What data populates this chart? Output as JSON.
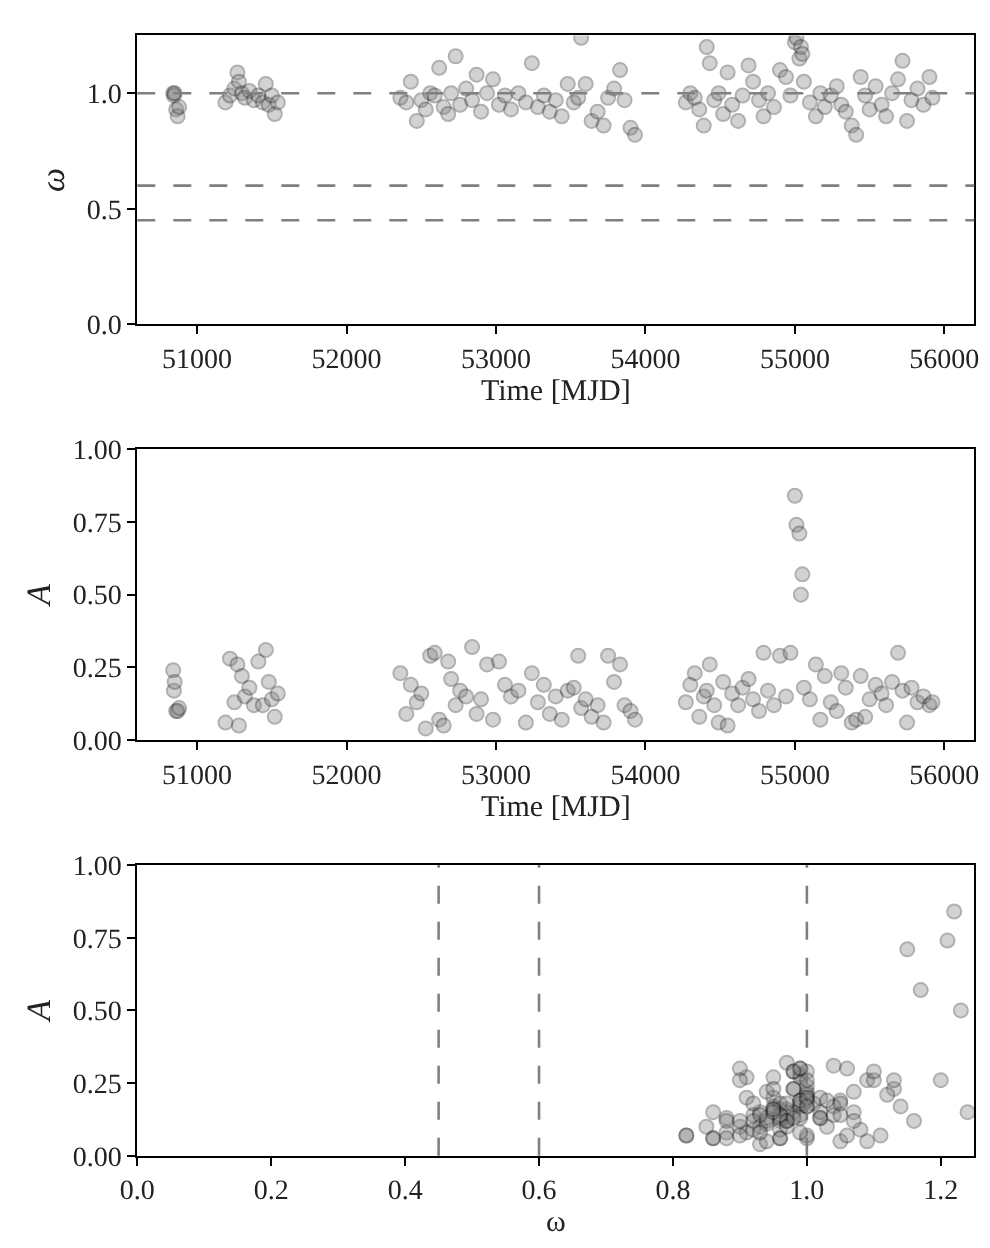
{
  "chart_data": [
    {
      "type": "scatter",
      "xlabel": "Time [MJD]",
      "ylabel": "ω",
      "marker": "circle",
      "xlim": [
        50600,
        56200
      ],
      "xticks": [
        51000,
        52000,
        53000,
        54000,
        55000,
        56000
      ],
      "ylim": [
        0,
        1.25
      ],
      "yticks": [
        {
          "value": 0,
          "label": "0.0"
        },
        {
          "value": 0.5,
          "label": "0.5"
        },
        {
          "value": 1,
          "label": "1.0"
        }
      ],
      "ref_lines": [
        {
          "axis": "y",
          "value": 1.0,
          "color": "#808080",
          "line_style": "dashed"
        },
        {
          "axis": "y",
          "value": 0.6,
          "color": "#808080",
          "line_style": "dashed"
        },
        {
          "axis": "y",
          "value": 0.45,
          "color": "#808080",
          "line_style": "dashed"
        }
      ],
      "x": [
        50840,
        50845,
        50850,
        50860,
        50870,
        50880,
        51190,
        51220,
        51250,
        51270,
        51280,
        51300,
        51320,
        51350,
        51380,
        51410,
        51440,
        51460,
        51480,
        51500,
        51520,
        51540,
        52360,
        52400,
        52430,
        52470,
        52500,
        52530,
        52560,
        52590,
        52620,
        52650,
        52680,
        52700,
        52730,
        52760,
        52800,
        52840,
        52870,
        52900,
        52940,
        52980,
        53020,
        53060,
        53100,
        53150,
        53200,
        53240,
        53280,
        53320,
        53360,
        53400,
        53440,
        53480,
        53520,
        53550,
        53570,
        53600,
        53640,
        53680,
        53720,
        53750,
        53790,
        53830,
        53860,
        53900,
        53930,
        54270,
        54300,
        54330,
        54360,
        54390,
        54410,
        54430,
        54460,
        54490,
        54520,
        54550,
        54580,
        54620,
        54650,
        54690,
        54720,
        54760,
        54790,
        54820,
        54860,
        54900,
        54940,
        54970,
        55000,
        55010,
        55030,
        55040,
        55050,
        55060,
        55100,
        55140,
        55170,
        55200,
        55240,
        55280,
        55310,
        55340,
        55380,
        55410,
        55440,
        55470,
        55500,
        55540,
        55580,
        55610,
        55650,
        55690,
        55720,
        55750,
        55780,
        55820,
        55860,
        55900,
        55920
      ],
      "series": [
        {
          "color": "#808080",
          "values": [
            1.0,
            0.99,
            1.0,
            0.93,
            0.9,
            0.94,
            0.96,
            0.99,
            1.02,
            1.09,
            1.05,
            1.0,
            0.98,
            1.01,
            0.97,
            0.99,
            0.96,
            1.04,
            0.95,
            0.99,
            0.91,
            0.96,
            0.98,
            0.96,
            1.05,
            0.88,
            0.97,
            0.93,
            1.0,
            0.99,
            1.11,
            0.94,
            0.91,
            1.0,
            1.16,
            0.95,
            1.02,
            0.97,
            1.08,
            0.92,
            1.0,
            1.06,
            0.95,
            0.99,
            0.93,
            1.0,
            0.96,
            1.13,
            0.94,
            0.99,
            0.92,
            0.97,
            0.9,
            1.04,
            0.96,
            0.98,
            1.24,
            1.04,
            0.88,
            0.92,
            0.86,
            0.98,
            1.02,
            1.1,
            0.97,
            0.85,
            0.82,
            0.96,
            1.0,
            0.98,
            0.93,
            0.86,
            1.2,
            1.13,
            0.97,
            1.0,
            0.91,
            1.09,
            0.95,
            0.88,
            0.99,
            1.12,
            1.05,
            0.97,
            0.9,
            1.0,
            0.94,
            1.1,
            1.07,
            0.99,
            1.22,
            1.24,
            1.15,
            1.2,
            1.17,
            1.05,
            0.96,
            0.9,
            1.0,
            0.94,
            0.99,
            1.03,
            0.95,
            0.92,
            0.86,
            0.82,
            1.07,
            0.99,
            0.93,
            1.03,
            0.95,
            0.9,
            1.0,
            1.06,
            1.14,
            0.88,
            0.97,
            1.02,
            0.95,
            1.07,
            0.98
          ]
        }
      ]
    },
    {
      "type": "scatter",
      "xlabel": "Time [MJD]",
      "ylabel": "A",
      "marker": "circle",
      "xlim": [
        50600,
        56200
      ],
      "xticks": [
        51000,
        52000,
        53000,
        54000,
        55000,
        56000
      ],
      "ylim": [
        0,
        1
      ],
      "yticks": [
        {
          "value": 0,
          "label": "0.00"
        },
        {
          "value": 0.25,
          "label": "0.25"
        },
        {
          "value": 0.5,
          "label": "0.50"
        },
        {
          "value": 0.75,
          "label": "0.75"
        },
        {
          "value": 1,
          "label": "1.00"
        }
      ],
      "x": [
        50840,
        50845,
        50850,
        50860,
        50870,
        50880,
        51190,
        51220,
        51250,
        51270,
        51280,
        51300,
        51320,
        51350,
        51380,
        51410,
        51440,
        51460,
        51480,
        51500,
        51520,
        51540,
        52360,
        52400,
        52430,
        52470,
        52500,
        52530,
        52560,
        52590,
        52620,
        52650,
        52680,
        52700,
        52730,
        52760,
        52800,
        52840,
        52870,
        52900,
        52940,
        52980,
        53020,
        53060,
        53100,
        53150,
        53200,
        53240,
        53280,
        53320,
        53360,
        53400,
        53440,
        53480,
        53520,
        53550,
        53570,
        53600,
        53640,
        53680,
        53720,
        53750,
        53790,
        53830,
        53860,
        53900,
        53930,
        54270,
        54300,
        54330,
        54360,
        54390,
        54410,
        54430,
        54460,
        54490,
        54520,
        54550,
        54580,
        54620,
        54650,
        54690,
        54720,
        54760,
        54790,
        54820,
        54860,
        54900,
        54940,
        54970,
        55000,
        55010,
        55030,
        55040,
        55050,
        55060,
        55100,
        55140,
        55170,
        55200,
        55240,
        55280,
        55310,
        55340,
        55380,
        55410,
        55440,
        55470,
        55500,
        55540,
        55580,
        55610,
        55650,
        55690,
        55720,
        55750,
        55780,
        55820,
        55860,
        55900,
        55920
      ],
      "series": [
        {
          "color": "#808080",
          "values": [
            0.24,
            0.17,
            0.2,
            0.1,
            0.1,
            0.11,
            0.06,
            0.28,
            0.13,
            0.26,
            0.05,
            0.22,
            0.15,
            0.18,
            0.12,
            0.27,
            0.12,
            0.31,
            0.2,
            0.14,
            0.08,
            0.16,
            0.23,
            0.09,
            0.19,
            0.13,
            0.16,
            0.04,
            0.29,
            0.3,
            0.07,
            0.05,
            0.27,
            0.21,
            0.12,
            0.17,
            0.15,
            0.32,
            0.09,
            0.14,
            0.26,
            0.07,
            0.27,
            0.19,
            0.15,
            0.17,
            0.06,
            0.23,
            0.13,
            0.19,
            0.09,
            0.15,
            0.07,
            0.17,
            0.18,
            0.29,
            0.11,
            0.14,
            0.08,
            0.12,
            0.06,
            0.29,
            0.2,
            0.26,
            0.12,
            0.1,
            0.07,
            0.13,
            0.19,
            0.23,
            0.08,
            0.15,
            0.17,
            0.26,
            0.12,
            0.06,
            0.2,
            0.05,
            0.16,
            0.12,
            0.18,
            0.21,
            0.14,
            0.1,
            0.3,
            0.17,
            0.12,
            0.29,
            0.15,
            0.3,
            0.84,
            0.74,
            0.71,
            0.5,
            0.57,
            0.18,
            0.14,
            0.26,
            0.07,
            0.22,
            0.13,
            0.1,
            0.23,
            0.18,
            0.06,
            0.07,
            0.22,
            0.08,
            0.14,
            0.19,
            0.16,
            0.12,
            0.2,
            0.3,
            0.17,
            0.06,
            0.18,
            0.13,
            0.15,
            0.12,
            0.13
          ]
        }
      ]
    },
    {
      "type": "scatter",
      "xlabel": "ω",
      "ylabel": "A",
      "marker": "circle",
      "xlim": [
        0,
        1.25
      ],
      "xticks": [
        {
          "value": 0,
          "label": "0.0"
        },
        {
          "value": 0.2,
          "label": "0.2"
        },
        {
          "value": 0.4,
          "label": "0.4"
        },
        {
          "value": 0.6,
          "label": "0.6"
        },
        {
          "value": 0.8,
          "label": "0.8"
        },
        {
          "value": 1,
          "label": "1.0"
        },
        {
          "value": 1.2,
          "label": "1.2"
        }
      ],
      "ylim": [
        0,
        1
      ],
      "yticks": [
        {
          "value": 0,
          "label": "0.00"
        },
        {
          "value": 0.25,
          "label": "0.25"
        },
        {
          "value": 0.5,
          "label": "0.50"
        },
        {
          "value": 0.75,
          "label": "0.75"
        },
        {
          "value": 1,
          "label": "1.00"
        }
      ],
      "ref_lines": [
        {
          "axis": "x",
          "value": 0.45,
          "color": "#808080",
          "line_style": "dashed"
        },
        {
          "axis": "x",
          "value": 0.6,
          "color": "#808080",
          "line_style": "dashed"
        },
        {
          "axis": "x",
          "value": 1.0,
          "color": "#808080",
          "line_style": "dashed"
        }
      ],
      "x": [
        1.0,
        0.99,
        1.0,
        0.93,
        0.9,
        0.94,
        0.96,
        0.99,
        1.02,
        1.09,
        1.05,
        1.0,
        0.98,
        1.01,
        0.97,
        0.99,
        0.96,
        1.04,
        0.95,
        0.99,
        0.91,
        0.96,
        0.98,
        0.96,
        1.05,
        0.88,
        0.97,
        0.93,
        1.0,
        0.99,
        1.11,
        0.94,
        0.91,
        1.0,
        1.16,
        0.95,
        1.02,
        0.97,
        1.08,
        0.92,
        1.0,
        1.06,
        0.95,
        0.99,
        0.93,
        1.0,
        0.96,
        1.13,
        0.94,
        0.99,
        0.92,
        0.97,
        0.9,
        1.04,
        0.96,
        0.98,
        1.24,
        1.04,
        0.88,
        0.92,
        0.86,
        0.98,
        1.02,
        1.1,
        0.97,
        0.85,
        0.82,
        0.96,
        1.0,
        0.98,
        0.93,
        0.86,
        1.2,
        1.13,
        0.97,
        1.0,
        0.91,
        1.09,
        0.95,
        0.88,
        0.99,
        1.12,
        1.05,
        0.97,
        0.9,
        1.0,
        0.94,
        1.1,
        1.07,
        0.99,
        1.22,
        1.21,
        1.15,
        1.23,
        1.17,
        1.05,
        0.96,
        0.9,
        1.0,
        0.94,
        0.99,
        1.03,
        0.95,
        0.92,
        0.86,
        0.82,
        1.07,
        0.99,
        0.93,
        1.03,
        0.95,
        0.9,
        1.0,
        1.06,
        1.14,
        0.88,
        0.97,
        1.02,
        0.95,
        1.07,
        0.98
      ],
      "series": [
        {
          "color": "#808080",
          "values": [
            0.24,
            0.17,
            0.2,
            0.1,
            0.1,
            0.11,
            0.06,
            0.28,
            0.13,
            0.26,
            0.05,
            0.22,
            0.15,
            0.18,
            0.12,
            0.27,
            0.12,
            0.31,
            0.2,
            0.14,
            0.08,
            0.16,
            0.23,
            0.09,
            0.19,
            0.13,
            0.16,
            0.04,
            0.29,
            0.3,
            0.07,
            0.05,
            0.27,
            0.21,
            0.12,
            0.17,
            0.15,
            0.32,
            0.09,
            0.14,
            0.26,
            0.07,
            0.27,
            0.19,
            0.15,
            0.17,
            0.06,
            0.23,
            0.13,
            0.19,
            0.09,
            0.15,
            0.07,
            0.17,
            0.18,
            0.29,
            0.15,
            0.14,
            0.08,
            0.12,
            0.06,
            0.29,
            0.2,
            0.26,
            0.12,
            0.1,
            0.07,
            0.13,
            0.19,
            0.23,
            0.08,
            0.15,
            0.26,
            0.26,
            0.12,
            0.06,
            0.2,
            0.05,
            0.16,
            0.12,
            0.18,
            0.21,
            0.14,
            0.1,
            0.3,
            0.17,
            0.12,
            0.29,
            0.15,
            0.3,
            0.84,
            0.74,
            0.71,
            0.5,
            0.57,
            0.18,
            0.14,
            0.26,
            0.07,
            0.22,
            0.13,
            0.1,
            0.23,
            0.18,
            0.06,
            0.07,
            0.22,
            0.08,
            0.14,
            0.19,
            0.16,
            0.12,
            0.2,
            0.3,
            0.17,
            0.06,
            0.18,
            0.13,
            0.15,
            0.12,
            0.13
          ]
        }
      ]
    }
  ]
}
